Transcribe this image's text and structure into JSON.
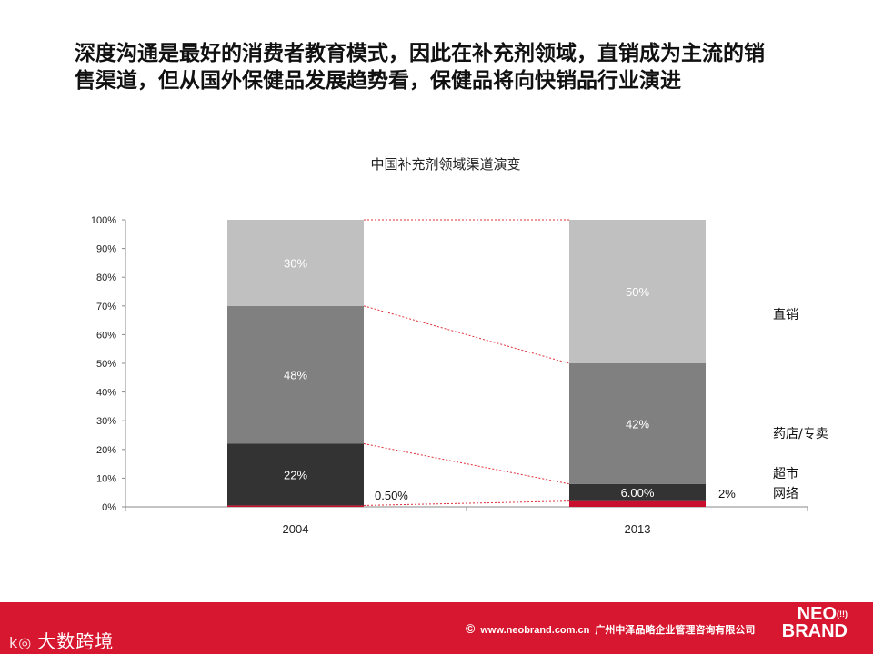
{
  "headline": {
    "line1": "深度沟通是最好的消费者教育模式，因此在补充剂领域，直销成为主流的销",
    "line2": "售渠道，但从国外保健品发展趋势看，保健品将向快销品行业演进"
  },
  "chart_data": {
    "type": "bar",
    "stacked": true,
    "title": "中国补充剂领域渠道演变",
    "categories": [
      "2004",
      "2013"
    ],
    "ylim": [
      0,
      100
    ],
    "yticks": [
      "0%",
      "10%",
      "20%",
      "30%",
      "40%",
      "50%",
      "60%",
      "70%",
      "80%",
      "90%",
      "100%"
    ],
    "series": [
      {
        "name": "网络",
        "values": [
          0.5,
          2
        ],
        "labels": [
          "0.50%",
          "2%"
        ],
        "color": "#c8102e",
        "label_color": "#111111"
      },
      {
        "name": "超市",
        "values": [
          21.5,
          6
        ],
        "labels": [
          "22%",
          "6.00%"
        ],
        "color": "#333333",
        "label_color": "#ffffff"
      },
      {
        "name": "药店/专卖",
        "values": [
          48,
          42
        ],
        "labels": [
          "48%",
          "42%"
        ],
        "color": "#808080",
        "label_color": "#ffffff"
      },
      {
        "name": "直销",
        "values": [
          30,
          50
        ],
        "labels": [
          "30%",
          "50%"
        ],
        "color": "#c0c0c0",
        "label_color": "#ffffff"
      }
    ],
    "connector_color": "#e0303a"
  },
  "footer": {
    "left_text": "大数跨境",
    "left_mark": "k◎",
    "copyright": "©",
    "url": "www.neobrand.com.cn",
    "company": "广州中泽品略企业管理咨询有限公司",
    "logo_line1": "NEO",
    "logo_line2": "BRAND",
    "logo_mark": "(!!)",
    "colors": {
      "band": "#d7172f"
    }
  }
}
